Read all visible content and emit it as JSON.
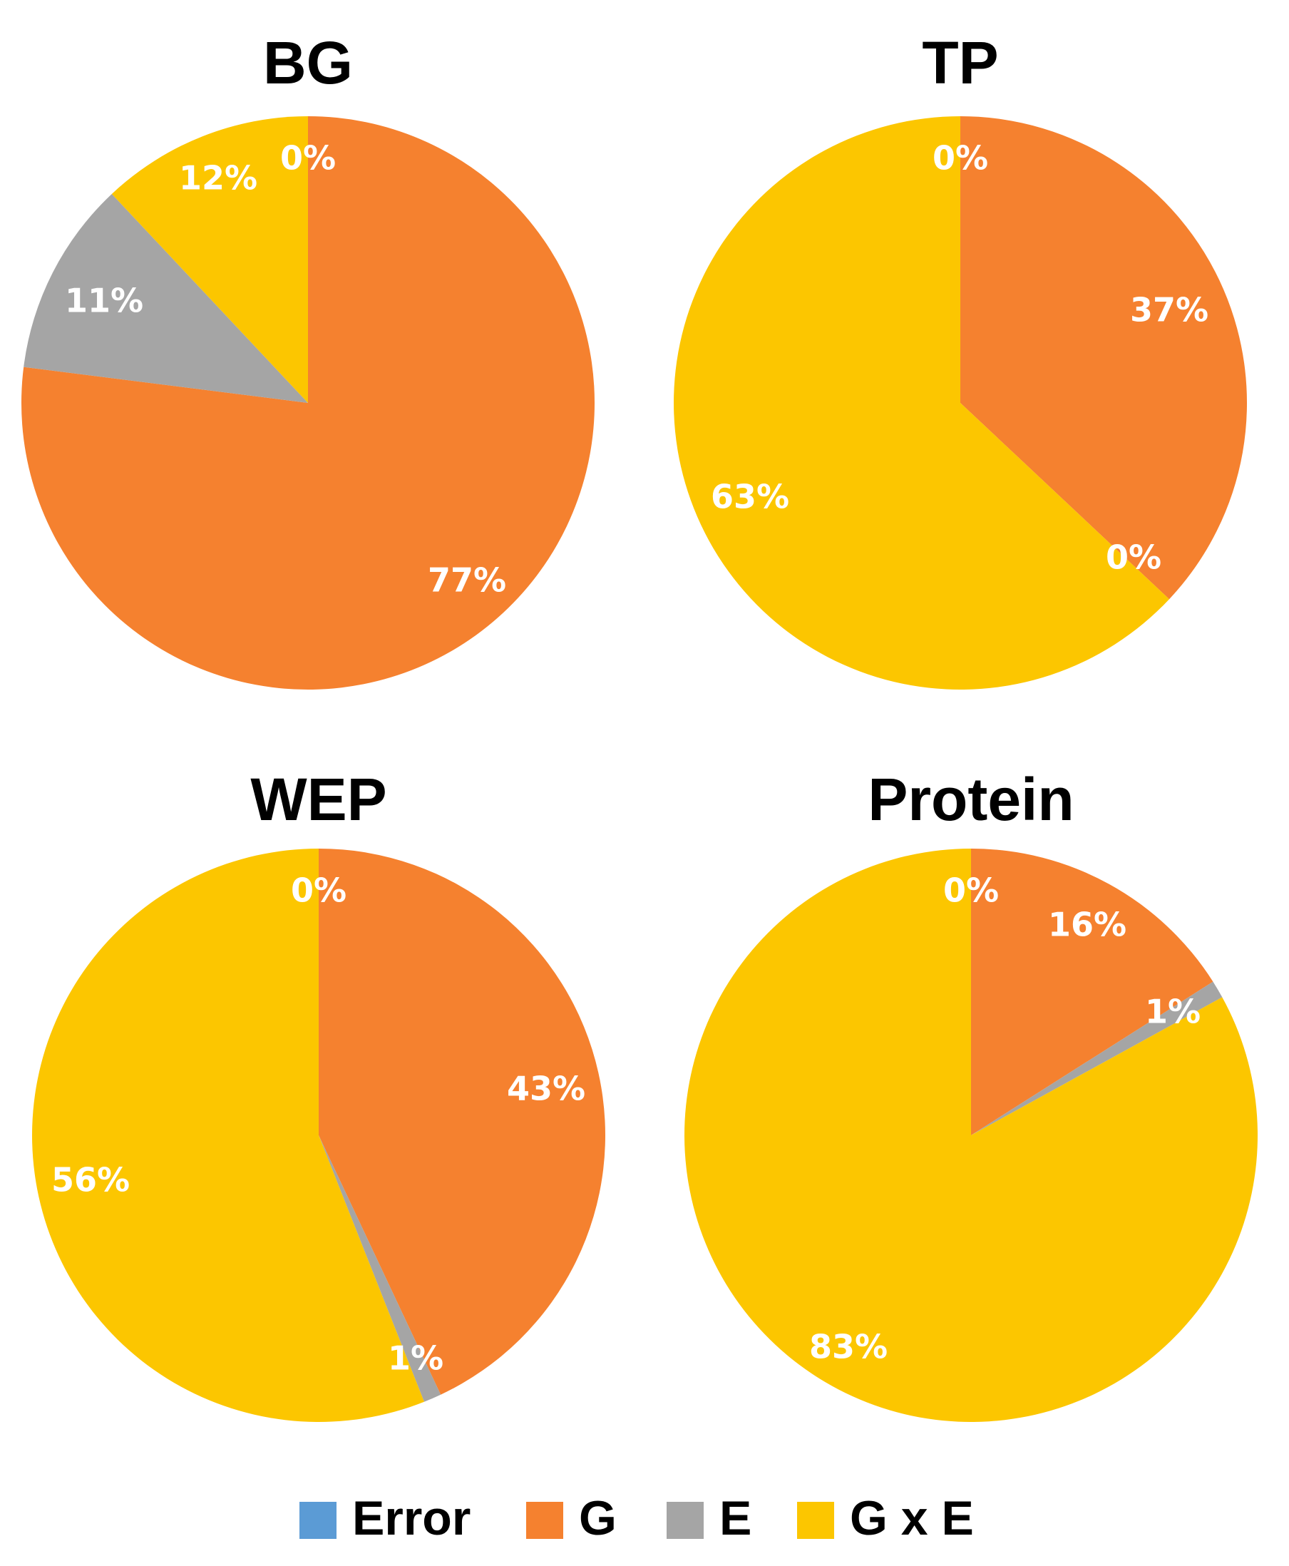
{
  "chart_data": [
    {
      "type": "pie",
      "title": "BG",
      "categories": [
        "Error",
        "G",
        "E",
        "G x E"
      ],
      "values": [
        0,
        77,
        11,
        12
      ],
      "labels": [
        "0%",
        "77%",
        "11%",
        "12%"
      ]
    },
    {
      "type": "pie",
      "title": "TP",
      "categories": [
        "Error",
        "G",
        "E",
        "G x E"
      ],
      "values": [
        0,
        37,
        0,
        63
      ],
      "labels": [
        "0%",
        "37%",
        "0%",
        "63%"
      ]
    },
    {
      "type": "pie",
      "title": "WEP",
      "categories": [
        "Error",
        "G",
        "E",
        "G x E"
      ],
      "values": [
        0,
        43,
        1,
        56
      ],
      "labels": [
        "0%",
        "43%",
        "1%",
        "56%"
      ]
    },
    {
      "type": "pie",
      "title": "Protein",
      "categories": [
        "Error",
        "G",
        "E",
        "G x E"
      ],
      "values": [
        0,
        16,
        1,
        83
      ],
      "labels": [
        "0%",
        "16%",
        "1%",
        "83%"
      ]
    }
  ],
  "legend": {
    "position": "bottom",
    "items": [
      {
        "label": "Error",
        "color": "#5b9bd5"
      },
      {
        "label": "G",
        "color": "#f5812f"
      },
      {
        "label": "E",
        "color": "#a5a5a5"
      },
      {
        "label": "G x E",
        "color": "#fcc600"
      }
    ]
  }
}
